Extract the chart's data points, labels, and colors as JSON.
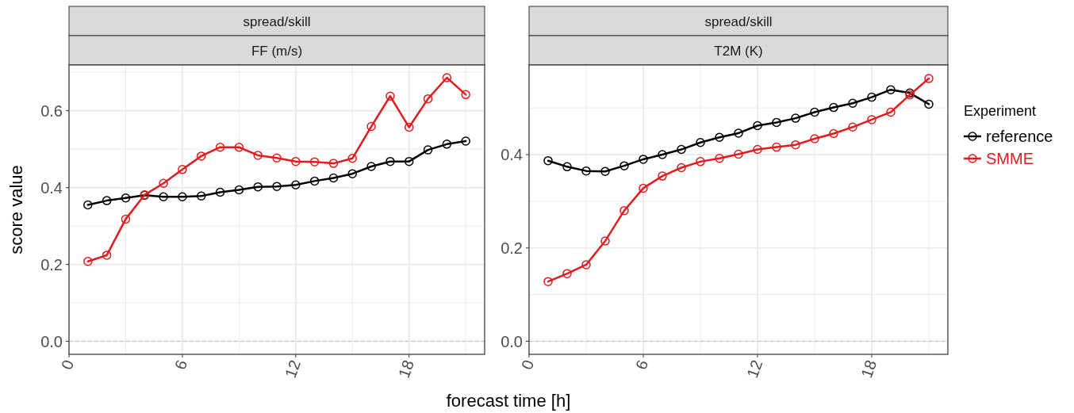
{
  "chart_data": [
    {
      "type": "line",
      "title": "spread/skill",
      "subtitle": "FF (m/s)",
      "xlabel": "forecast time [h]",
      "ylabel": "score value",
      "x": [
        1,
        2,
        3,
        4,
        5,
        6,
        7,
        8,
        9,
        10,
        11,
        12,
        13,
        14,
        15,
        16,
        17,
        18,
        19,
        20,
        21
      ],
      "series": [
        {
          "color": "#000000",
          "values": [
            0.355,
            0.366,
            0.373,
            0.38,
            0.376,
            0.376,
            0.378,
            0.388,
            0.394,
            0.402,
            0.403,
            0.407,
            0.417,
            0.425,
            0.436,
            0.455,
            0.468,
            0.468,
            0.498,
            0.513,
            0.521
          ]
        },
        {
          "color": "#e41a1c",
          "values": [
            0.208,
            0.224,
            0.318,
            0.381,
            0.411,
            0.447,
            0.482,
            0.505,
            0.505,
            0.484,
            0.477,
            0.468,
            0.467,
            0.463,
            0.476,
            0.559,
            0.638,
            0.557,
            0.631,
            0.686,
            0.642
          ]
        }
      ],
      "xlim": [
        0,
        22
      ],
      "xticks": [
        0,
        {
          "value": 3,
          "label": null
        },
        6,
        {
          "value": 9,
          "label": null
        },
        12,
        {
          "value": 15,
          "label": null
        },
        18,
        {
          "value": 21,
          "label": null
        }
      ],
      "ylim": [
        -0.034,
        0.719
      ],
      "yticks": [
        {
          "value": 0,
          "label": "0.0"
        },
        {
          "value": 0.1,
          "label": null
        },
        0.2,
        {
          "value": 0.3,
          "label": null
        },
        0.4,
        {
          "value": 0.5,
          "label": null
        },
        0.6,
        {
          "value": 0.7,
          "label": null
        }
      ],
      "ref_lines": [
        {
          "axis": "y",
          "value": 0,
          "color": "#bdbdbd",
          "line_style": "dashed"
        }
      ],
      "grid": true,
      "marker": "circle",
      "line_style": "solid"
    },
    {
      "type": "line",
      "title": "spread/skill",
      "subtitle": "T2M (K)",
      "legend_title": "Experiment",
      "x": [
        1,
        2,
        3,
        4,
        5,
        6,
        7,
        8,
        9,
        10,
        11,
        12,
        13,
        14,
        15,
        16,
        17,
        18,
        19,
        20,
        21
      ],
      "series": [
        {
          "name": "reference",
          "color": "#000000",
          "values": [
            0.387,
            0.374,
            0.365,
            0.364,
            0.376,
            0.39,
            0.4,
            0.411,
            0.426,
            0.437,
            0.446,
            0.462,
            0.469,
            0.478,
            0.491,
            0.501,
            0.51,
            0.523,
            0.539,
            0.532,
            0.508
          ]
        },
        {
          "name": "SMME",
          "color": "#e41a1c",
          "values": [
            0.128,
            0.145,
            0.164,
            0.215,
            0.28,
            0.328,
            0.354,
            0.372,
            0.385,
            0.392,
            0.401,
            0.411,
            0.416,
            0.421,
            0.434,
            0.445,
            0.459,
            0.475,
            0.491,
            0.528,
            0.563
          ]
        }
      ],
      "xlim": [
        0,
        22
      ],
      "xticks": [
        0,
        {
          "value": 3,
          "label": null
        },
        6,
        {
          "value": 9,
          "label": null
        },
        12,
        {
          "value": 15,
          "label": null
        },
        18,
        {
          "value": 21,
          "label": null
        }
      ],
      "ylim": [
        -0.028,
        0.592
      ],
      "yticks": [
        {
          "value": 0,
          "label": "0.0"
        },
        {
          "value": 0.1,
          "label": null
        },
        0.2,
        {
          "value": 0.3,
          "label": null
        },
        0.4,
        {
          "value": 0.5,
          "label": null
        }
      ],
      "ref_lines": [
        {
          "axis": "y",
          "value": 0,
          "color": "#bdbdbd",
          "line_style": "dashed"
        }
      ],
      "grid": true,
      "marker": "circle",
      "line_style": "solid",
      "legend": "right"
    }
  ]
}
